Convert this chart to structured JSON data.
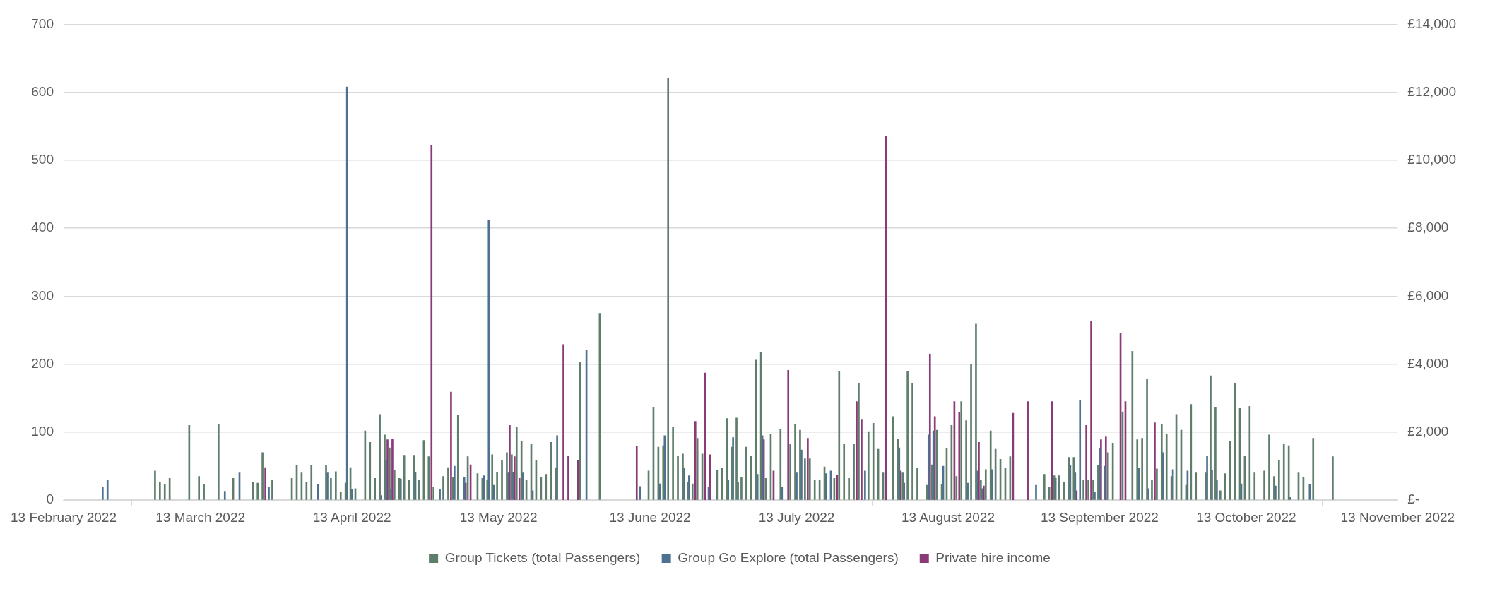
{
  "chart_data": {
    "type": "bar",
    "xlim": [
      "2022-02-13",
      "2022-11-13"
    ],
    "xticks": [
      {
        "value": "2022-02-13",
        "label": "13 February 2022"
      },
      {
        "value": "2022-03-13",
        "label": "13 March 2022"
      },
      {
        "value": "2022-04-13",
        "label": "13 April 2022"
      },
      {
        "value": "2022-05-13",
        "label": "13 May 2022"
      },
      {
        "value": "2022-06-13",
        "label": "13 June 2022"
      },
      {
        "value": "2022-07-13",
        "label": "13 July 2022"
      },
      {
        "value": "2022-08-13",
        "label": "13 August 2022"
      },
      {
        "value": "2022-09-13",
        "label": "13 September 2022"
      },
      {
        "value": "2022-10-13",
        "label": "13 October 2022"
      },
      {
        "value": "2022-11-13",
        "label": "13 November 2022"
      }
    ],
    "ylim": [
      0,
      700
    ],
    "yticks": [
      0,
      100,
      200,
      300,
      400,
      500,
      600,
      700
    ],
    "y2lim": [
      0,
      14000
    ],
    "y2ticks": [
      {
        "value": 0,
        "label": "£-"
      },
      {
        "value": 2000,
        "label": "£2,000"
      },
      {
        "value": 4000,
        "label": "£4,000"
      },
      {
        "value": 6000,
        "label": "£6,000"
      },
      {
        "value": 8000,
        "label": "£8,000"
      },
      {
        "value": 10000,
        "label": "£10,000"
      },
      {
        "value": 12000,
        "label": "£12,000"
      },
      {
        "value": 14000,
        "label": "£14,000"
      }
    ],
    "grid": "y",
    "legend": "bottom",
    "series": [
      {
        "name": "Group Tickets (total Passengers)",
        "color": "#5e7d6a",
        "x": [
          "2022-03-04",
          "2022-03-05",
          "2022-03-06",
          "2022-03-07",
          "2022-03-11",
          "2022-03-13",
          "2022-03-14",
          "2022-03-17",
          "2022-03-20",
          "2022-03-24",
          "2022-03-25",
          "2022-03-26",
          "2022-03-28",
          "2022-04-01",
          "2022-04-02",
          "2022-04-03",
          "2022-04-04",
          "2022-04-05",
          "2022-04-08",
          "2022-04-09",
          "2022-04-10",
          "2022-04-11",
          "2022-04-12",
          "2022-04-13",
          "2022-04-14",
          "2022-04-16",
          "2022-04-17",
          "2022-04-18",
          "2022-04-19",
          "2022-04-20",
          "2022-04-21",
          "2022-04-22",
          "2022-04-23",
          "2022-04-24",
          "2022-04-25",
          "2022-04-26",
          "2022-04-27",
          "2022-04-28",
          "2022-04-29",
          "2022-04-30",
          "2022-05-02",
          "2022-05-03",
          "2022-05-04",
          "2022-05-05",
          "2022-05-07",
          "2022-05-09",
          "2022-05-10",
          "2022-05-11",
          "2022-05-12",
          "2022-05-13",
          "2022-05-14",
          "2022-05-15",
          "2022-05-16",
          "2022-05-17",
          "2022-05-18",
          "2022-05-19",
          "2022-05-20",
          "2022-05-21",
          "2022-05-22",
          "2022-05-23",
          "2022-05-24",
          "2022-05-25",
          "2022-05-30",
          "2022-06-03",
          "2022-06-13",
          "2022-06-14",
          "2022-06-15",
          "2022-06-16",
          "2022-06-17",
          "2022-06-18",
          "2022-06-19",
          "2022-06-20",
          "2022-06-21",
          "2022-06-22",
          "2022-06-23",
          "2022-06-24",
          "2022-06-27",
          "2022-06-28",
          "2022-06-29",
          "2022-06-30",
          "2022-07-01",
          "2022-07-02",
          "2022-07-03",
          "2022-07-04",
          "2022-07-05",
          "2022-07-06",
          "2022-07-07",
          "2022-07-08",
          "2022-07-10",
          "2022-07-12",
          "2022-07-13",
          "2022-07-14",
          "2022-07-15",
          "2022-07-16",
          "2022-07-17",
          "2022-07-18",
          "2022-07-19",
          "2022-07-21",
          "2022-07-22",
          "2022-07-23",
          "2022-07-24",
          "2022-07-25",
          "2022-07-26",
          "2022-07-28",
          "2022-07-29",
          "2022-07-30",
          "2022-07-31",
          "2022-08-02",
          "2022-08-03",
          "2022-08-04",
          "2022-08-05",
          "2022-08-06",
          "2022-08-07",
          "2022-08-09",
          "2022-08-10",
          "2022-08-11",
          "2022-08-12",
          "2022-08-13",
          "2022-08-14",
          "2022-08-15",
          "2022-08-16",
          "2022-08-17",
          "2022-08-18",
          "2022-08-19",
          "2022-08-20",
          "2022-08-21",
          "2022-08-22",
          "2022-08-23",
          "2022-08-24",
          "2022-08-25",
          "2022-08-26",
          "2022-09-02",
          "2022-09-03",
          "2022-09-04",
          "2022-09-05",
          "2022-09-06",
          "2022-09-07",
          "2022-09-08",
          "2022-09-10",
          "2022-09-11",
          "2022-09-12",
          "2022-09-13",
          "2022-09-15",
          "2022-09-16",
          "2022-09-18",
          "2022-09-20",
          "2022-09-21",
          "2022-09-22",
          "2022-09-23",
          "2022-09-24",
          "2022-09-25",
          "2022-09-26",
          "2022-09-27",
          "2022-09-28",
          "2022-09-29",
          "2022-09-30",
          "2022-10-01",
          "2022-10-02",
          "2022-10-03",
          "2022-10-05",
          "2022-10-06",
          "2022-10-07",
          "2022-10-08",
          "2022-10-09",
          "2022-10-10",
          "2022-10-11",
          "2022-10-12",
          "2022-10-13",
          "2022-10-14",
          "2022-10-15",
          "2022-10-17",
          "2022-10-18",
          "2022-10-19",
          "2022-10-20",
          "2022-10-21",
          "2022-10-22",
          "2022-10-24",
          "2022-10-25",
          "2022-10-27",
          "2022-10-31"
        ],
        "values": [
          43,
          26,
          23,
          32,
          110,
          35,
          23,
          112,
          32,
          26,
          25,
          70,
          30,
          32,
          51,
          40,
          26,
          51,
          51,
          32,
          42,
          12,
          25,
          48,
          17,
          102,
          85,
          32,
          126,
          96,
          77,
          44,
          32,
          66,
          30,
          66,
          30,
          88,
          64,
          19,
          35,
          48,
          33,
          125,
          64,
          39,
          32,
          30,
          67,
          41,
          58,
          70,
          67,
          108,
          87,
          30,
          83,
          58,
          33,
          38,
          85,
          48,
          203,
          275,
          43,
          136,
          78,
          80,
          620,
          107,
          65,
          68,
          26,
          24,
          91,
          68,
          44,
          47,
          120,
          78,
          121,
          33,
          78,
          65,
          206,
          217,
          32,
          97,
          104,
          83,
          111,
          103,
          61,
          61,
          29,
          29,
          49,
          32,
          190,
          83,
          32,
          83,
          172,
          101,
          113,
          75,
          40,
          123,
          90,
          40,
          190,
          172,
          47,
          22,
          52,
          103,
          23,
          76,
          110,
          35,
          145,
          117,
          200,
          259,
          29,
          45,
          102,
          75,
          60,
          47,
          64,
          38,
          19,
          36,
          36,
          27,
          63,
          63,
          30,
          30,
          29,
          51,
          70,
          84,
          130,
          219,
          89,
          91,
          178,
          30,
          46,
          111,
          97,
          35,
          126,
          103,
          22,
          141,
          40,
          40,
          183,
          136,
          14,
          39,
          86,
          172,
          135,
          65,
          138,
          40,
          43,
          96,
          35,
          58,
          83,
          80,
          40,
          33,
          91,
          64
        ]
      },
      {
        "name": "Group Go Explore (total Passengers)",
        "color": "#4e7191",
        "x": [
          "2022-02-21",
          "2022-02-22",
          "2022-03-18",
          "2022-03-21",
          "2022-03-27",
          "2022-04-06",
          "2022-04-08",
          "2022-04-12",
          "2022-04-13",
          "2022-04-19",
          "2022-04-20",
          "2022-04-21",
          "2022-04-23",
          "2022-04-26",
          "2022-05-01",
          "2022-05-04",
          "2022-05-06",
          "2022-05-10",
          "2022-05-11",
          "2022-05-12",
          "2022-05-15",
          "2022-05-16",
          "2022-05-18",
          "2022-05-20",
          "2022-05-25",
          "2022-05-31",
          "2022-06-11",
          "2022-06-15",
          "2022-06-16",
          "2022-06-20",
          "2022-06-21",
          "2022-06-25",
          "2022-06-29",
          "2022-06-30",
          "2022-07-01",
          "2022-07-05",
          "2022-07-06",
          "2022-07-10",
          "2022-07-13",
          "2022-07-14",
          "2022-07-19",
          "2022-07-20",
          "2022-07-27",
          "2022-08-03",
          "2022-08-04",
          "2022-08-09",
          "2022-08-10",
          "2022-08-12",
          "2022-08-17",
          "2022-08-19",
          "2022-08-20",
          "2022-08-22",
          "2022-08-31",
          "2022-09-04",
          "2022-09-07",
          "2022-09-08",
          "2022-09-09",
          "2022-09-12",
          "2022-09-13",
          "2022-09-14",
          "2022-09-21",
          "2022-09-23",
          "2022-09-26",
          "2022-09-28",
          "2022-10-01",
          "2022-10-05",
          "2022-10-06",
          "2022-10-07",
          "2022-10-12",
          "2022-10-19",
          "2022-10-22",
          "2022-10-26"
        ],
        "values": [
          19,
          30,
          13,
          40,
          19,
          23,
          40,
          608,
          16,
          7,
          58,
          16,
          31,
          41,
          16,
          50,
          33,
          36,
          412,
          22,
          40,
          41,
          40,
          14,
          95,
          221,
          20,
          24,
          95,
          47,
          36,
          19,
          30,
          92,
          26,
          38,
          95,
          19,
          40,
          74,
          39,
          43,
          43,
          77,
          25,
          96,
          102,
          50,
          25,
          43,
          17,
          45,
          22,
          32,
          51,
          40,
          147,
          12,
          76,
          50,
          47,
          17,
          70,
          45,
          43,
          65,
          44,
          30,
          24,
          21,
          4,
          23
        ]
      },
      {
        "name": "Private hire income",
        "color": "#8b3a78",
        "axis": "y2",
        "x": [
          "2022-03-26",
          "2022-04-20",
          "2022-04-21",
          "2022-04-29",
          "2022-05-03",
          "2022-05-06",
          "2022-05-07",
          "2022-05-15",
          "2022-05-16",
          "2022-05-17",
          "2022-05-26",
          "2022-05-27",
          "2022-05-29",
          "2022-06-10",
          "2022-06-22",
          "2022-06-24",
          "2022-06-25",
          "2022-07-06",
          "2022-07-08",
          "2022-07-11",
          "2022-07-15",
          "2022-07-21",
          "2022-07-25",
          "2022-07-26",
          "2022-07-31",
          "2022-08-03",
          "2022-08-09",
          "2022-08-10",
          "2022-08-14",
          "2022-08-15",
          "2022-08-19",
          "2022-08-20",
          "2022-08-26",
          "2022-08-29",
          "2022-09-03",
          "2022-09-08",
          "2022-09-10",
          "2022-09-11",
          "2022-09-13",
          "2022-09-14",
          "2022-09-17",
          "2022-09-18",
          "2022-09-24"
        ],
        "values": [
          960,
          1780,
          1800,
          10450,
          3180,
          500,
          1040,
          2200,
          1280,
          640,
          4580,
          1300,
          1180,
          1580,
          2320,
          3740,
          1340,
          1780,
          860,
          3820,
          1820,
          740,
          2900,
          2380,
          10700,
          860,
          4300,
          2460,
          2900,
          2580,
          1700,
          420,
          2560,
          2900,
          2900,
          280,
          2200,
          5260,
          1780,
          1860,
          4920,
          2900,
          2280
        ]
      }
    ]
  }
}
